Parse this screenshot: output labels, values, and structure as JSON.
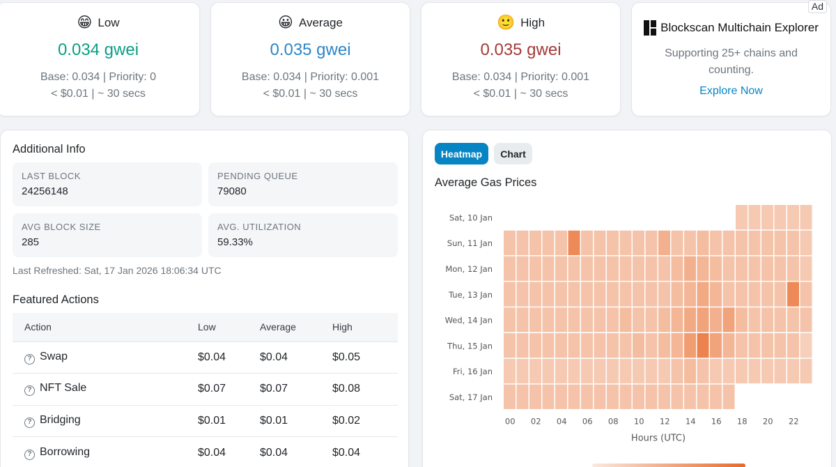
{
  "tiers": [
    {
      "emoji": "😁",
      "label": "Low",
      "price": "0.034 gwei",
      "color": "#0c9e83",
      "detail1": "Base: 0.034 | Priority: 0",
      "detail2": "< $0.01 | ~ 30 secs"
    },
    {
      "emoji": "😀",
      "label": "Average",
      "price": "0.035 gwei",
      "color": "#2d85c6",
      "detail1": "Base: 0.034 | Priority: 0.001",
      "detail2": "< $0.01 | ~ 30 secs"
    },
    {
      "emoji": "🙂",
      "label": "High",
      "price": "0.035 gwei",
      "color": "#a33a37",
      "detail1": "Base: 0.034 | Priority: 0.001",
      "detail2": "< $0.01 | ~ 30 secs"
    }
  ],
  "ad": {
    "badge": "Ad",
    "title": "Blockscan Multichain Explorer",
    "text": "Supporting 25+ chains and counting.",
    "link": "Explore Now",
    "logo_icon": "blockscan-logo-icon"
  },
  "info": {
    "title": "Additional Info",
    "stats": [
      {
        "label": "LAST BLOCK",
        "value": "24256148"
      },
      {
        "label": "PENDING QUEUE",
        "value": "79080"
      },
      {
        "label": "AVG BLOCK SIZE",
        "value": "285"
      },
      {
        "label": "AVG. UTILIZATION",
        "value": "59.33%"
      }
    ],
    "refreshed": "Last Refreshed: Sat, 17 Jan 2026 18:06:34 UTC"
  },
  "featured": {
    "title": "Featured Actions",
    "headers": [
      "Action",
      "Low",
      "Average",
      "High"
    ],
    "rows": [
      {
        "action": "Swap",
        "low": "$0.04",
        "avg": "$0.04",
        "high": "$0.05"
      },
      {
        "action": "NFT Sale",
        "low": "$0.07",
        "avg": "$0.07",
        "high": "$0.08"
      },
      {
        "action": "Bridging",
        "low": "$0.01",
        "avg": "$0.01",
        "high": "$0.02"
      },
      {
        "action": "Borrowing",
        "low": "$0.04",
        "avg": "$0.04",
        "high": "$0.04"
      }
    ],
    "info_icon": "question-circle-icon"
  },
  "heatmap_panel": {
    "tab_heatmap": "Heatmap",
    "tab_chart": "Chart",
    "title": "Average Gas Prices"
  },
  "chart_data": {
    "type": "heatmap",
    "title": "Average Gas Prices",
    "xlabel": "Hours (UTC)",
    "x_ticks": [
      "00",
      "02",
      "04",
      "06",
      "08",
      "10",
      "12",
      "14",
      "16",
      "18",
      "20",
      "22"
    ],
    "rows": [
      "Sat, 10 Jan",
      "Sun, 11 Jan",
      "Mon, 12 Jan",
      "Tue, 13 Jan",
      "Wed, 14 Jan",
      "Thu, 15 Jan",
      "Fri, 16 Jan",
      "Sat, 17 Jan"
    ],
    "hours": 24,
    "scale": "relative intensity 0-1",
    "values": [
      [
        null,
        null,
        null,
        null,
        null,
        null,
        null,
        null,
        null,
        null,
        null,
        null,
        null,
        null,
        null,
        null,
        null,
        null,
        0.25,
        0.25,
        0.25,
        0.25,
        0.25,
        0.25
      ],
      [
        0.3,
        0.3,
        0.3,
        0.3,
        0.3,
        0.75,
        0.3,
        0.3,
        0.3,
        0.3,
        0.3,
        0.3,
        0.45,
        0.3,
        0.3,
        0.35,
        0.3,
        0.3,
        0.3,
        0.3,
        0.3,
        0.3,
        0.3,
        0.25
      ],
      [
        0.3,
        0.3,
        0.3,
        0.3,
        0.3,
        0.3,
        0.3,
        0.3,
        0.3,
        0.3,
        0.3,
        0.3,
        0.3,
        0.35,
        0.45,
        0.4,
        0.35,
        0.3,
        0.3,
        0.3,
        0.3,
        0.3,
        0.3,
        0.25
      ],
      [
        0.3,
        0.3,
        0.3,
        0.3,
        0.3,
        0.3,
        0.3,
        0.3,
        0.3,
        0.3,
        0.3,
        0.3,
        0.3,
        0.35,
        0.4,
        0.5,
        0.4,
        0.3,
        0.3,
        0.3,
        0.3,
        0.3,
        0.75,
        0.3
      ],
      [
        0.3,
        0.3,
        0.3,
        0.3,
        0.3,
        0.3,
        0.3,
        0.3,
        0.3,
        0.35,
        0.3,
        0.3,
        0.35,
        0.4,
        0.5,
        0.55,
        0.45,
        0.55,
        0.35,
        0.3,
        0.3,
        0.3,
        0.3,
        0.3
      ],
      [
        0.3,
        0.3,
        0.3,
        0.3,
        0.3,
        0.3,
        0.3,
        0.3,
        0.3,
        0.3,
        0.35,
        0.3,
        0.35,
        0.4,
        0.6,
        0.8,
        0.55,
        0.4,
        0.3,
        0.3,
        0.3,
        0.3,
        0.3,
        0.2
      ],
      [
        0.25,
        0.25,
        0.25,
        0.25,
        0.25,
        0.25,
        0.25,
        0.25,
        0.25,
        0.25,
        0.25,
        0.25,
        0.25,
        0.3,
        0.35,
        0.3,
        0.25,
        0.25,
        0.25,
        0.25,
        0.25,
        0.25,
        0.25,
        0.25
      ],
      [
        0.3,
        0.3,
        0.3,
        0.3,
        0.3,
        0.3,
        0.3,
        0.3,
        0.3,
        0.3,
        0.3,
        0.3,
        0.3,
        0.3,
        0.3,
        0.3,
        0.3,
        0.3,
        null,
        null,
        null,
        null,
        null,
        null
      ]
    ]
  }
}
